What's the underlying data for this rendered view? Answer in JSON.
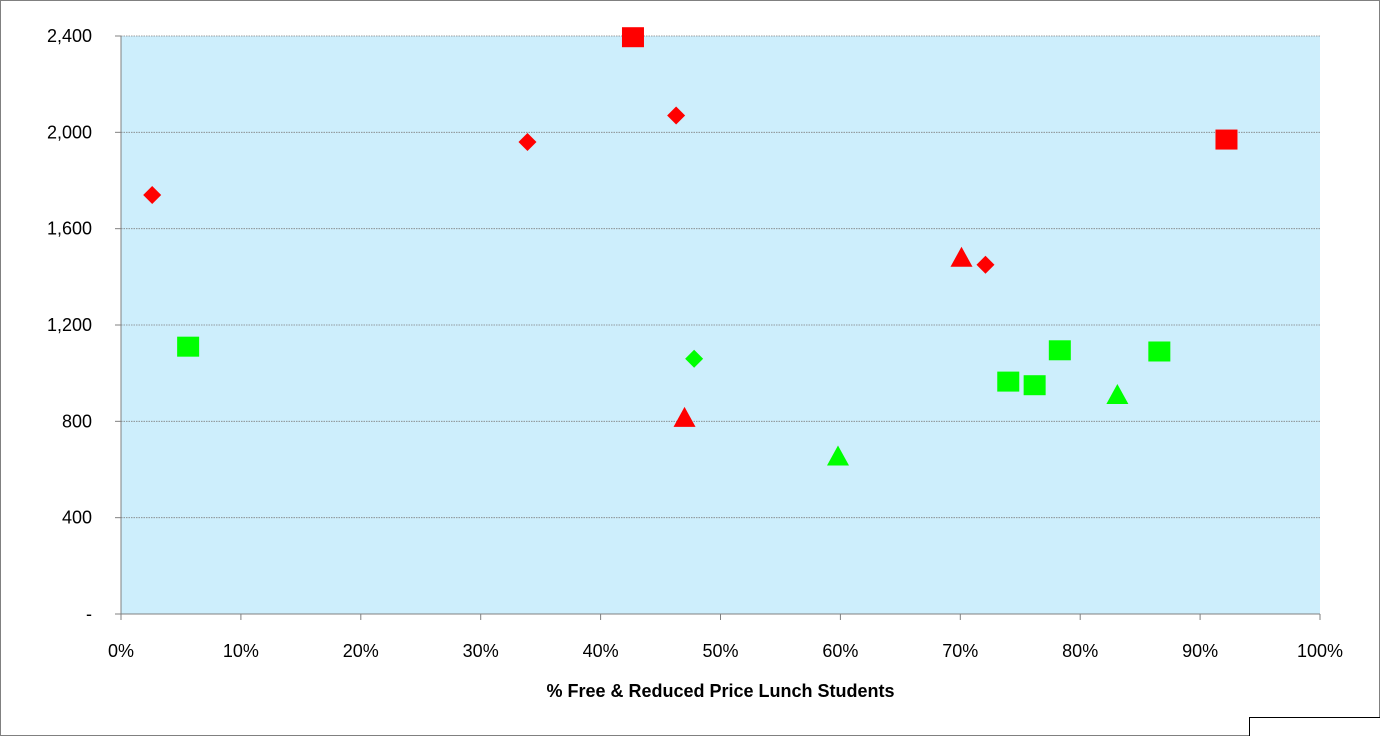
{
  "colors": {
    "plot_background": "#cdeefc",
    "red": "#ff0000",
    "green": "#00ff00",
    "gridline": "#808080",
    "axis": "#808080",
    "chart_border": "#808080"
  },
  "chart_data": {
    "type": "scatter",
    "title": "",
    "xlabel": "% Free & Reduced Price Lunch Students",
    "ylabel": "",
    "xlim": [
      0,
      1
    ],
    "ylim": [
      0,
      2400
    ],
    "x_ticks": [
      0,
      0.1,
      0.2,
      0.3,
      0.4,
      0.5,
      0.6,
      0.7,
      0.8,
      0.9,
      1.0
    ],
    "x_tick_labels": [
      "0%",
      "10%",
      "20%",
      "30%",
      "40%",
      "50%",
      "60%",
      "70%",
      "80%",
      "90%",
      "100%"
    ],
    "y_ticks": [
      0,
      400,
      800,
      1200,
      1600,
      2000,
      2400
    ],
    "y_tick_labels": [
      "-",
      "400",
      "800",
      "1,200",
      "1,600",
      "2,000",
      "2,400"
    ],
    "grid": "horizontal",
    "legend": "none",
    "series": [
      {
        "marker": "diamond",
        "color": "#ff0000",
        "points": [
          {
            "x": 0.026,
            "y": 1740
          },
          {
            "x": 0.339,
            "y": 1960
          },
          {
            "x": 0.463,
            "y": 2070
          },
          {
            "x": 0.721,
            "y": 1450
          }
        ]
      },
      {
        "marker": "square",
        "color": "#ff0000",
        "points": [
          {
            "x": 0.427,
            "y": 2395
          },
          {
            "x": 0.922,
            "y": 1970
          }
        ]
      },
      {
        "marker": "triangle",
        "color": "#ff0000",
        "points": [
          {
            "x": 0.47,
            "y": 810
          },
          {
            "x": 0.701,
            "y": 1475
          }
        ]
      },
      {
        "marker": "square",
        "color": "#00ff00",
        "points": [
          {
            "x": 0.056,
            "y": 1110
          },
          {
            "x": 0.74,
            "y": 965
          },
          {
            "x": 0.762,
            "y": 950
          },
          {
            "x": 0.783,
            "y": 1095
          },
          {
            "x": 0.866,
            "y": 1090
          }
        ]
      },
      {
        "marker": "diamond",
        "color": "#00ff00",
        "points": [
          {
            "x": 0.478,
            "y": 1060
          }
        ]
      },
      {
        "marker": "triangle",
        "color": "#00ff00",
        "points": [
          {
            "x": 0.598,
            "y": 650
          },
          {
            "x": 0.831,
            "y": 905
          }
        ]
      }
    ]
  }
}
